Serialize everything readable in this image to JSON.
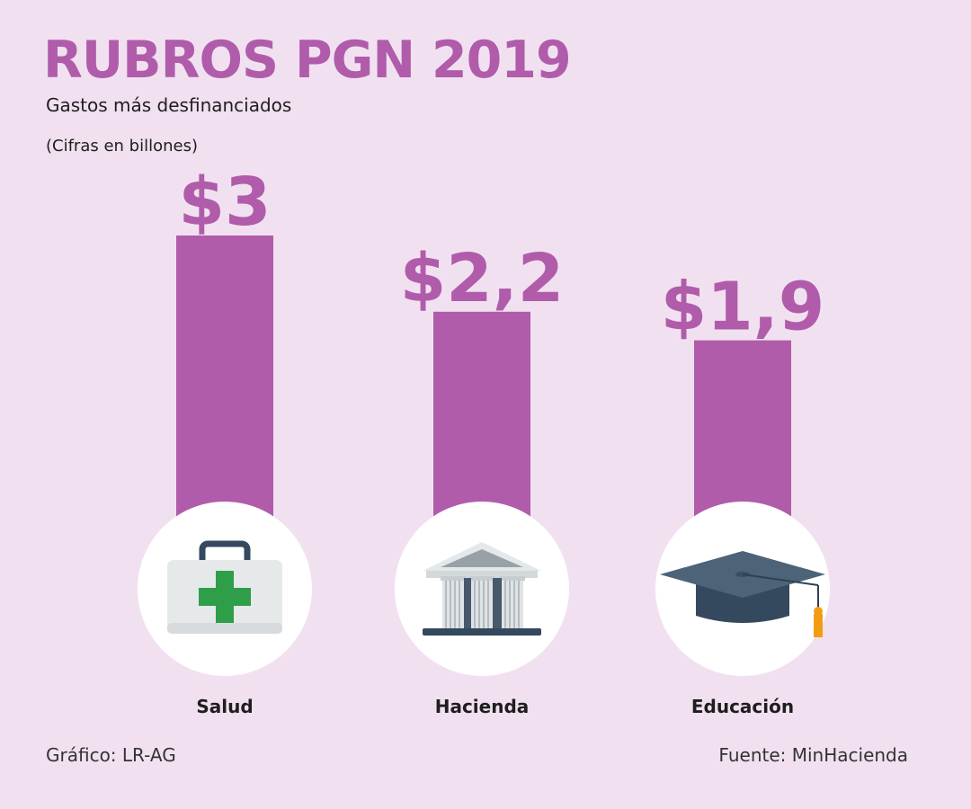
{
  "header": {
    "title": "RUBROS PGN 2019",
    "subtitle": "Gastos más desfinanciados",
    "unit_note": "(Cifras en billones)"
  },
  "chart_data": {
    "type": "bar",
    "title": "RUBROS PGN 2019",
    "subtitle": "Gastos más desfinanciados",
    "ylabel": "",
    "xlabel": "",
    "categories": [
      "Salud",
      "Hacienda",
      "Educación"
    ],
    "values": [
      3,
      2.2,
      1.9
    ],
    "value_labels": [
      "$3",
      "$2,2",
      "$1,9"
    ],
    "icons": [
      "first-aid-kit-icon",
      "bank-building-icon",
      "graduation-cap-icon"
    ],
    "ylim": [
      0,
      3
    ],
    "grid": false,
    "legend": "none",
    "bar_color": "#b05cab"
  },
  "footer": {
    "credit": "Gráfico: LR-AG",
    "source": "Fuente: MinHacienda"
  },
  "colors": {
    "background": "#f1e1f0",
    "accent": "#b05cab",
    "circle": "#ffffff",
    "text": "#1e1e1e"
  }
}
